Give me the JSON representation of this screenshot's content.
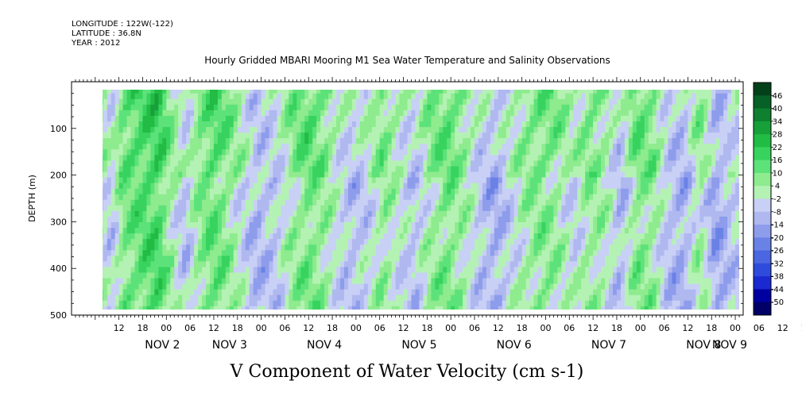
{
  "header": {
    "longitude": "LONGITUDE : 122W(-122)",
    "latitude": "LATITUDE : 36.8N",
    "year": "YEAR : 2012"
  },
  "title": "Hourly Gridded MBARI Mooring M1 Sea Water Temperature and Salinity Observations",
  "chart_data": {
    "type": "heatmap",
    "title": "Hourly Gridded MBARI Mooring M1 Sea Water Temperature and Salinity Observations",
    "xlabel": "V Component of Water Velocity (cm s-1)",
    "ylabel": "DEPTH (m)",
    "y_range": [
      0,
      500
    ],
    "y_inverted": true,
    "y_ticks": [
      100,
      200,
      300,
      400,
      500
    ],
    "x_range_hours": [
      0,
      170
    ],
    "x_hour_ticks": [
      "12",
      "18",
      "00",
      "06",
      "12",
      "18",
      "00",
      "06",
      "12",
      "18",
      "00",
      "06",
      "12",
      "18",
      "00",
      "06",
      "12",
      "18",
      "00",
      "06",
      "12",
      "18",
      "00",
      "06",
      "12",
      "18",
      "00",
      "06",
      "12",
      "18",
      "00",
      "06"
    ],
    "x_day_labels": [
      "NOV 2",
      "NOV 3",
      "NOV 4",
      "NOV 5",
      "NOV 6",
      "NOV 7",
      "NOV 8",
      "NOV 9"
    ],
    "data_extent": {
      "start_hour": 7,
      "end_hour": 169,
      "top_depth": 13,
      "bottom_depth": 487
    },
    "colorbar_levels": [
      -50,
      -44,
      -38,
      -32,
      -26,
      -20,
      -14,
      -8,
      -2,
      4,
      10,
      16,
      22,
      28,
      34,
      40,
      46
    ],
    "colorbar_tick_labels": [
      "46",
      "40",
      "34",
      "28",
      "22",
      "16",
      "10",
      "4",
      "-2",
      "-8",
      "-14",
      "-20",
      "-26",
      "-32",
      "-38",
      "-44",
      "-50"
    ],
    "colorbar_colors": [
      "#000066",
      "#0000a0",
      "#1a2ad0",
      "#2e4bdc",
      "#4a66e0",
      "#6a82e6",
      "#8e9cec",
      "#b0b8f0",
      "#c8d0f6",
      "#b4f2b4",
      "#8eeb8e",
      "#5de27a",
      "#38d35e",
      "#22bb44",
      "#17a03a",
      "#0e8030",
      "#076026",
      "#02401a"
    ],
    "grid": false,
    "column_pattern_hours": [
      {
        "hour": 7,
        "v": 2
      },
      {
        "hour": 10,
        "v": -6
      },
      {
        "hour": 13,
        "v": 9
      },
      {
        "hour": 18,
        "v": 14
      },
      {
        "hour": 22,
        "v": 16
      },
      {
        "hour": 25,
        "v": 5
      },
      {
        "hour": 29,
        "v": -8
      },
      {
        "hour": 32,
        "v": 6
      },
      {
        "hour": 36,
        "v": 12
      },
      {
        "hour": 39,
        "v": 8
      },
      {
        "hour": 42,
        "v": 0
      },
      {
        "hour": 47,
        "v": -10
      },
      {
        "hour": 52,
        "v": -6
      },
      {
        "hour": 56,
        "v": 4
      },
      {
        "hour": 60,
        "v": 10
      },
      {
        "hour": 64,
        "v": 6
      },
      {
        "hour": 67,
        "v": -2
      },
      {
        "hour": 71,
        "v": -9
      },
      {
        "hour": 75,
        "v": -4
      },
      {
        "hour": 79,
        "v": 6
      },
      {
        "hour": 83,
        "v": -2
      },
      {
        "hour": 87,
        "v": -8
      },
      {
        "hour": 90,
        "v": 2
      },
      {
        "hour": 95,
        "v": 10
      },
      {
        "hour": 99,
        "v": 4
      },
      {
        "hour": 103,
        "v": -6
      },
      {
        "hour": 107,
        "v": -12
      },
      {
        "hour": 111,
        "v": -4
      },
      {
        "hour": 115,
        "v": 4
      },
      {
        "hour": 119,
        "v": 8
      },
      {
        "hour": 123,
        "v": 4
      },
      {
        "hour": 127,
        "v": -4
      },
      {
        "hour": 131,
        "v": 6
      },
      {
        "hour": 135,
        "v": 2
      },
      {
        "hour": 139,
        "v": -10
      },
      {
        "hour": 143,
        "v": 8
      },
      {
        "hour": 147,
        "v": 6
      },
      {
        "hour": 151,
        "v": -8
      },
      {
        "hour": 155,
        "v": -12
      },
      {
        "hour": 159,
        "v": 4
      },
      {
        "hour": 163,
        "v": -14
      },
      {
        "hour": 167,
        "v": -6
      }
    ]
  }
}
